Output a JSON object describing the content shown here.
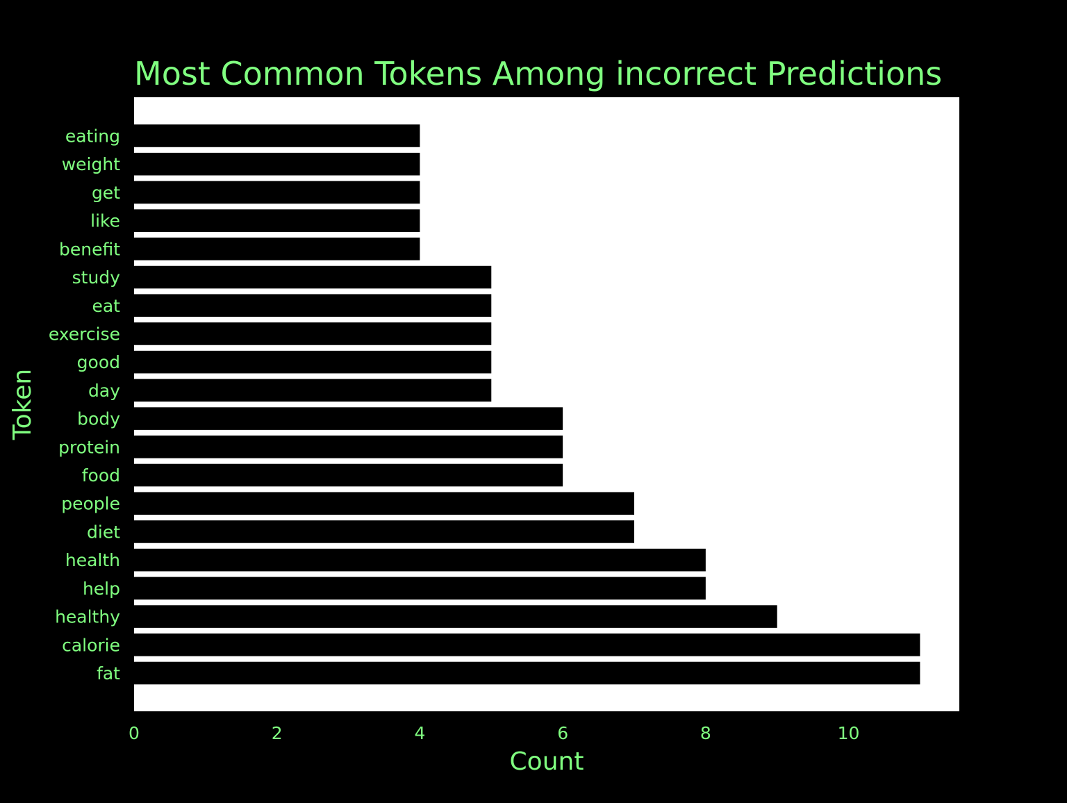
{
  "chart_data": {
    "type": "bar",
    "orientation": "horizontal",
    "title": "Most Common Tokens Among incorrect Predictions",
    "xlabel": "Count",
    "ylabel": "Token",
    "categories": [
      "eating",
      "weight",
      "get",
      "like",
      "benefit",
      "study",
      "eat",
      "exercise",
      "good",
      "day",
      "body",
      "protein",
      "food",
      "people",
      "diet",
      "health",
      "help",
      "healthy",
      "calorie",
      "fat"
    ],
    "values": [
      4,
      4,
      4,
      4,
      4,
      5,
      5,
      5,
      5,
      5,
      6,
      6,
      6,
      7,
      7,
      8,
      8,
      9,
      11,
      11
    ],
    "xlim": [
      0,
      11.55
    ],
    "xticks": [
      "0",
      "2",
      "4",
      "6",
      "8",
      "10"
    ],
    "grid": false,
    "legend": "none",
    "colors": {
      "background": "#000000",
      "plot_area": "#ffffff",
      "bar": "#000000",
      "text": "#80ff80"
    }
  }
}
